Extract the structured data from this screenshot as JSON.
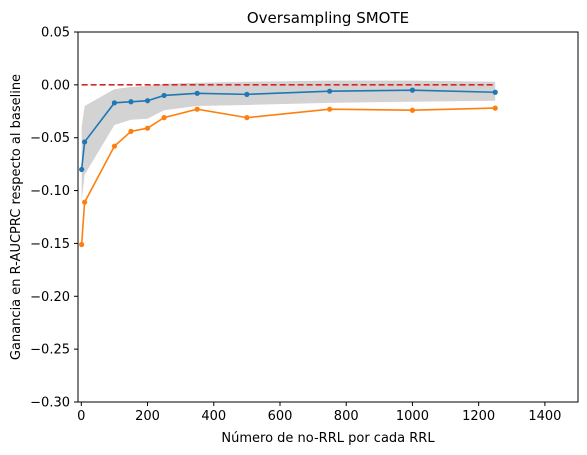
{
  "chart_data": {
    "type": "line",
    "title": "Oversampling SMOTE",
    "xlabel": "Número de no-RRL por cada RRL",
    "ylabel": "Ganancia en R-AUCPRC respecto al baseline",
    "xlim": [
      -10,
      1500
    ],
    "ylim": [
      -0.3,
      0.05
    ],
    "xticks": [
      0,
      200,
      400,
      600,
      800,
      1000,
      1200,
      1400
    ],
    "yticks": [
      -0.3,
      -0.25,
      -0.2,
      -0.15,
      -0.1,
      -0.05,
      0.0,
      0.05
    ],
    "ytick_labels": [
      "−0.30",
      "−0.25",
      "−0.20",
      "−0.15",
      "−0.10",
      "−0.05",
      "0.00",
      "0.05"
    ],
    "grid": false,
    "series": [
      {
        "color": "#1f77b4",
        "marker": "circle",
        "x": [
          1,
          10,
          100,
          150,
          200,
          250,
          350,
          500,
          750,
          1000,
          1250
        ],
        "y": [
          -0.08,
          -0.054,
          -0.017,
          -0.016,
          -0.015,
          -0.01,
          -0.008,
          -0.009,
          -0.006,
          -0.005,
          -0.007
        ]
      },
      {
        "color": "#ff7f0e",
        "marker": "circle",
        "x": [
          1,
          10,
          100,
          150,
          200,
          250,
          350,
          500,
          750,
          1000,
          1250
        ],
        "y": [
          -0.151,
          -0.111,
          -0.058,
          -0.044,
          -0.041,
          -0.031,
          -0.023,
          -0.031,
          -0.023,
          -0.024,
          -0.022
        ]
      }
    ],
    "band": {
      "color": "#d3d3d3",
      "x": [
        1,
        10,
        100,
        150,
        200,
        250,
        350,
        500,
        750,
        1000,
        1250
      ],
      "upper": [
        -0.04,
        -0.02,
        -0.004,
        -0.002,
        -0.001,
        0.001,
        0.002,
        0.003,
        0.004,
        0.004,
        0.003
      ],
      "lower": [
        -0.11,
        -0.085,
        -0.038,
        -0.033,
        -0.032,
        -0.024,
        -0.02,
        -0.019,
        -0.017,
        -0.016,
        -0.015
      ]
    },
    "reference_line": {
      "color": "#d62728",
      "style": "dashed",
      "x": [
        1,
        1250
      ],
      "y": [
        0.0,
        0.0
      ]
    }
  }
}
